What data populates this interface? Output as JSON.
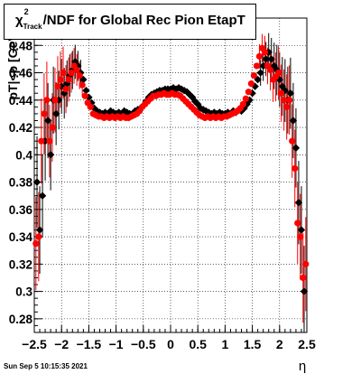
{
  "chart_data": {
    "type": "scatter",
    "title_chi": "χ",
    "title_sup": "2",
    "title_sub": "Track",
    "title_rest": "/NDF for Global Rec Pion EtapT",
    "xlabel": "η",
    "ylabel": "pT|<p [GeV/c]",
    "xlim": [
      -2.5,
      2.5
    ],
    "ylim": [
      0.27,
      0.5
    ],
    "grid": true,
    "x_ticks": [
      {
        "v": -2.5,
        "label": "−2.5"
      },
      {
        "v": -2,
        "label": "−2"
      },
      {
        "v": -1.5,
        "label": "−1.5"
      },
      {
        "v": -1,
        "label": "−1"
      },
      {
        "v": -0.5,
        "label": "−0.5"
      },
      {
        "v": 0,
        "label": "0"
      },
      {
        "v": 0.5,
        "label": "0.5"
      },
      {
        "v": 1,
        "label": "1"
      },
      {
        "v": 1.5,
        "label": "1.5"
      },
      {
        "v": 2,
        "label": "2"
      },
      {
        "v": 2.5,
        "label": "2.5"
      }
    ],
    "y_ticks": [
      {
        "v": 0.28,
        "label": "0.28"
      },
      {
        "v": 0.3,
        "label": "0.3"
      },
      {
        "v": 0.32,
        "label": "0.32"
      },
      {
        "v": 0.34,
        "label": "0.34"
      },
      {
        "v": 0.36,
        "label": "0.36"
      },
      {
        "v": 0.38,
        "label": "0.38"
      },
      {
        "v": 0.4,
        "label": "0.4"
      },
      {
        "v": 0.42,
        "label": "0.42"
      },
      {
        "v": 0.44,
        "label": "0.44"
      },
      {
        "v": 0.46,
        "label": "0.46"
      },
      {
        "v": 0.48,
        "label": "0.48"
      }
    ],
    "series": [
      {
        "color": "#000000",
        "marker": "diamond",
        "x": [
          -2.45,
          -2.4,
          -2.35,
          -2.3,
          -2.25,
          -2.2,
          -2.15,
          -2.1,
          -2.05,
          -2.0,
          -1.95,
          -1.9,
          -1.85,
          -1.8,
          -1.75,
          -1.7,
          -1.65,
          -1.6,
          -1.55,
          -1.5,
          -1.45,
          -1.4,
          -1.35,
          -1.3,
          -1.25,
          -1.2,
          -1.15,
          -1.1,
          -1.05,
          -1.0,
          -0.95,
          -0.9,
          -0.85,
          -0.8,
          -0.75,
          -0.7,
          -0.65,
          -0.6,
          -0.55,
          -0.5,
          -0.45,
          -0.4,
          -0.35,
          -0.3,
          -0.25,
          -0.2,
          -0.15,
          -0.1,
          -0.05,
          0.0,
          0.05,
          0.1,
          0.15,
          0.2,
          0.25,
          0.3,
          0.35,
          0.4,
          0.45,
          0.5,
          0.55,
          0.6,
          0.65,
          0.7,
          0.75,
          0.8,
          0.85,
          0.9,
          0.95,
          1.0,
          1.05,
          1.1,
          1.15,
          1.2,
          1.25,
          1.3,
          1.35,
          1.4,
          1.45,
          1.5,
          1.55,
          1.6,
          1.65,
          1.7,
          1.75,
          1.8,
          1.85,
          1.9,
          1.95,
          2.0,
          2.05,
          2.1,
          2.15,
          2.2,
          2.25,
          2.3,
          2.35,
          2.4,
          2.45
        ],
        "y": [
          0.38,
          0.345,
          0.37,
          0.41,
          0.425,
          0.4,
          0.44,
          0.43,
          0.44,
          0.45,
          0.445,
          0.452,
          0.458,
          0.462,
          0.468,
          0.465,
          0.46,
          0.455,
          0.447,
          0.442,
          0.438,
          0.434,
          0.432,
          0.431,
          0.43,
          0.431,
          0.43,
          0.432,
          0.431,
          0.43,
          0.431,
          0.43,
          0.432,
          0.431,
          0.43,
          0.43,
          0.432,
          0.433,
          0.434,
          0.436,
          0.439,
          0.442,
          0.444,
          0.445,
          0.446,
          0.447,
          0.447,
          0.448,
          0.448,
          0.448,
          0.449,
          0.448,
          0.449,
          0.448,
          0.447,
          0.446,
          0.444,
          0.442,
          0.439,
          0.437,
          0.434,
          0.433,
          0.432,
          0.431,
          0.43,
          0.431,
          0.43,
          0.431,
          0.43,
          0.43,
          0.431,
          0.43,
          0.432,
          0.431,
          0.433,
          0.432,
          0.434,
          0.437,
          0.44,
          0.445,
          0.45,
          0.455,
          0.46,
          0.465,
          0.47,
          0.475,
          0.47,
          0.465,
          0.462,
          0.455,
          0.45,
          0.447,
          0.44,
          0.445,
          0.425,
          0.405,
          0.365,
          0.345,
          0.3
        ]
      },
      {
        "color": "#ff0000",
        "marker": "circle",
        "x": [
          -2.47,
          -2.42,
          -2.37,
          -2.32,
          -2.27,
          -2.22,
          -2.17,
          -2.12,
          -2.07,
          -2.02,
          -1.97,
          -1.92,
          -1.87,
          -1.82,
          -1.77,
          -1.72,
          -1.67,
          -1.62,
          -1.57,
          -1.52,
          -1.47,
          -1.42,
          -1.37,
          -1.32,
          -1.27,
          -1.22,
          -1.17,
          -1.12,
          -1.07,
          -1.02,
          -0.97,
          -0.92,
          -0.87,
          -0.82,
          -0.77,
          -0.72,
          -0.67,
          -0.62,
          -0.57,
          -0.52,
          -0.47,
          -0.42,
          -0.37,
          -0.32,
          -0.27,
          -0.22,
          -0.17,
          -0.12,
          -0.07,
          -0.02,
          0.03,
          0.08,
          0.13,
          0.18,
          0.23,
          0.28,
          0.33,
          0.38,
          0.43,
          0.48,
          0.53,
          0.58,
          0.63,
          0.68,
          0.73,
          0.78,
          0.83,
          0.88,
          0.93,
          0.98,
          1.03,
          1.08,
          1.13,
          1.18,
          1.23,
          1.28,
          1.33,
          1.38,
          1.43,
          1.48,
          1.53,
          1.58,
          1.63,
          1.68,
          1.73,
          1.78,
          1.83,
          1.88,
          1.93,
          1.98,
          2.03,
          2.08,
          2.13,
          2.18,
          2.23,
          2.28,
          2.33,
          2.38,
          2.43,
          2.48
        ],
        "y": [
          0.335,
          0.34,
          0.41,
          0.43,
          0.44,
          0.41,
          0.42,
          0.44,
          0.45,
          0.455,
          0.46,
          0.448,
          0.455,
          0.46,
          0.465,
          0.462,
          0.458,
          0.451,
          0.443,
          0.438,
          0.435,
          0.43,
          0.429,
          0.428,
          0.428,
          0.427,
          0.428,
          0.427,
          0.428,
          0.427,
          0.428,
          0.427,
          0.428,
          0.427,
          0.427,
          0.428,
          0.429,
          0.43,
          0.432,
          0.435,
          0.437,
          0.439,
          0.441,
          0.443,
          0.443,
          0.444,
          0.444,
          0.445,
          0.444,
          0.444,
          0.445,
          0.444,
          0.444,
          0.443,
          0.441,
          0.439,
          0.437,
          0.435,
          0.433,
          0.431,
          0.429,
          0.428,
          0.427,
          0.428,
          0.427,
          0.428,
          0.427,
          0.428,
          0.427,
          0.428,
          0.428,
          0.429,
          0.43,
          0.431,
          0.432,
          0.434,
          0.437,
          0.441,
          0.446,
          0.452,
          0.458,
          0.465,
          0.472,
          0.478,
          0.475,
          0.465,
          0.462,
          0.455,
          0.457,
          0.46,
          0.445,
          0.44,
          0.435,
          0.44,
          0.41,
          0.39,
          0.35,
          0.34,
          0.31,
          0.32
        ]
      }
    ]
  },
  "timestamp": "Sun Sep  5 10:15:35 2021"
}
